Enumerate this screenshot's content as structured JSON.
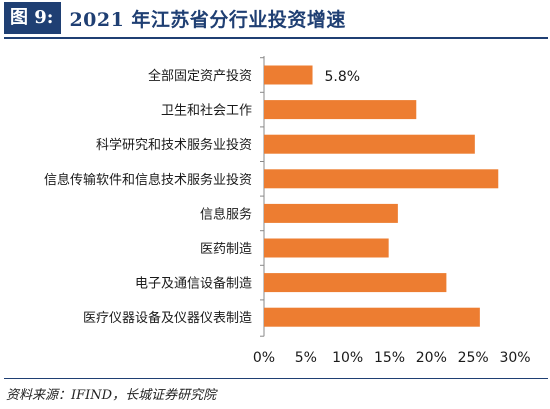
{
  "header": {
    "figure_label": "图 9:",
    "title": "2021 年江苏省分行业投资增速"
  },
  "footer": {
    "source": "资料来源：IFIND，长城证券研究院"
  },
  "colors": {
    "bar": "#ed7d31",
    "title": "#1f3f73"
  },
  "chart_data": {
    "type": "bar",
    "orientation": "horizontal",
    "categories": [
      "全部固定资产投资",
      "卫生和社会工作",
      "科学研究和技术服务业投资",
      "信息传输软件和信息技术服务业投资",
      "信息服务",
      "医药制造",
      "电子及通信设备制造",
      "医疗仪器设备及仪器仪表制造"
    ],
    "values": [
      5.8,
      18.2,
      25.2,
      28.0,
      16.0,
      14.9,
      21.8,
      25.8
    ],
    "data_labels": [
      "5.8%",
      null,
      null,
      null,
      null,
      null,
      null,
      null
    ],
    "xlim": [
      0,
      30
    ],
    "xticks": [
      0,
      5,
      10,
      15,
      20,
      25,
      30
    ],
    "xtick_labels": [
      "0%",
      "5%",
      "10%",
      "15%",
      "20%",
      "25%",
      "30%"
    ],
    "grid": false
  }
}
